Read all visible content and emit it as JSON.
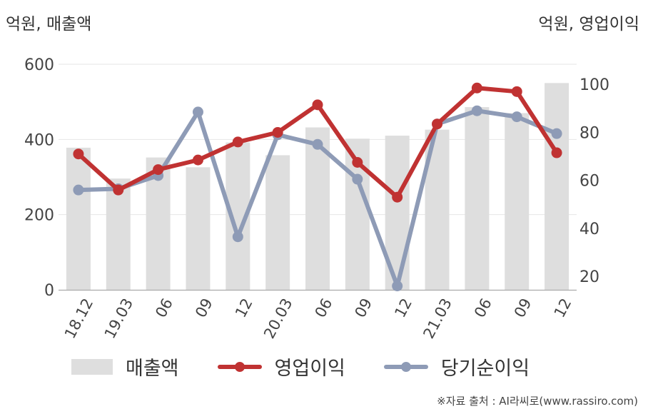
{
  "chart_data": {
    "type": "bar+line",
    "left_axis_label": "억원, 매출액",
    "right_axis_label": "억원, 영업이익",
    "categories": [
      "18.12",
      "19.03",
      "06",
      "09",
      "12",
      "20.03",
      "06",
      "09",
      "12",
      "21.03",
      "06",
      "09",
      "12"
    ],
    "left_ticks": [
      "0",
      "200",
      "400",
      "600"
    ],
    "right_ticks": [
      "20",
      "40",
      "60",
      "80",
      "100"
    ],
    "left_ylim": [
      0,
      600
    ],
    "right_ylim": [
      14.4,
      108.4
    ],
    "grid": true,
    "legend_position": "bottom",
    "series": [
      {
        "name": "매출액",
        "type": "bar",
        "axis": "left",
        "color": "#dedede",
        "values": [
          378,
          296,
          352,
          326,
          392,
          358,
          432,
          402,
          410,
          426,
          486,
          470,
          550
        ]
      },
      {
        "name": "영업이익",
        "type": "line",
        "axis": "right",
        "color": "#c03232",
        "values": [
          71,
          56,
          64.5,
          68.5,
          76,
          80,
          91.5,
          67.5,
          53,
          83.5,
          98.5,
          97,
          71.5
        ]
      },
      {
        "name": "당기순이익",
        "type": "line",
        "axis": "right",
        "color": "#8e9bb6",
        "values": [
          56,
          56.5,
          62,
          88.5,
          36.5,
          79,
          75,
          60.5,
          16,
          83.5,
          89,
          86.5,
          79.5
        ]
      }
    ]
  },
  "legend": {
    "sales": "매출액",
    "operating_profit": "영업이익",
    "net_income": "당기순이익"
  },
  "source": "※자료 출처 : AI라씨로(www.rassiro.com)"
}
